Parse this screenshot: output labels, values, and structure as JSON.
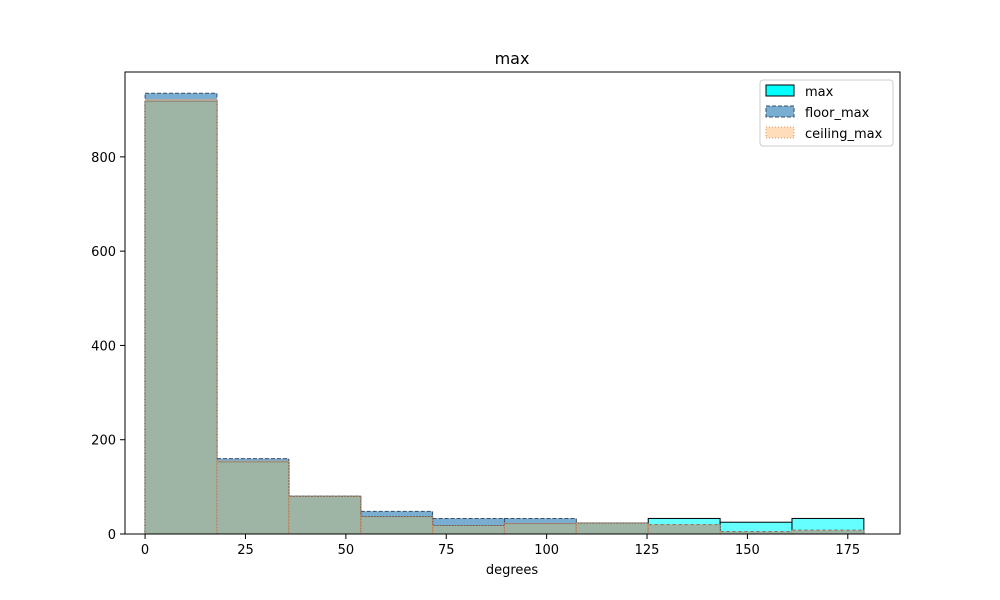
{
  "chart_data": {
    "type": "bar",
    "title": "max",
    "xlabel": "degrees",
    "ylabel": "",
    "xlim": [
      -5,
      188
    ],
    "ylim": [
      0,
      980
    ],
    "x_ticks": [
      0,
      25,
      50,
      75,
      100,
      125,
      150,
      175
    ],
    "y_ticks": [
      0,
      200,
      400,
      600,
      800
    ],
    "bin_edges": [
      0,
      17.9,
      35.8,
      53.7,
      71.6,
      89.5,
      107.4,
      125.3,
      143.2,
      161.1,
      179
    ],
    "grid": false,
    "legend_position": "top-right",
    "series": [
      {
        "name": "max",
        "counts": [
          918,
          153,
          80,
          37,
          18,
          22,
          23,
          33,
          25,
          33
        ],
        "style": "solid",
        "fill": "#00ffff",
        "fill_opacity": 0.6,
        "edge": "#000000"
      },
      {
        "name": "floor_max",
        "counts": [
          935,
          160,
          80,
          48,
          33,
          33,
          23,
          20,
          5,
          8
        ],
        "style": "dashed",
        "fill": "#1f77b4",
        "fill_opacity": 0.6,
        "edge": "#3a4f66"
      },
      {
        "name": "ceiling_max",
        "counts": [
          922,
          155,
          80,
          37,
          18,
          23,
          23,
          20,
          5,
          8
        ],
        "style": "dotted",
        "fill": "#ffbb78",
        "fill_opacity": 0.5,
        "edge": "#d99a6c"
      }
    ]
  }
}
